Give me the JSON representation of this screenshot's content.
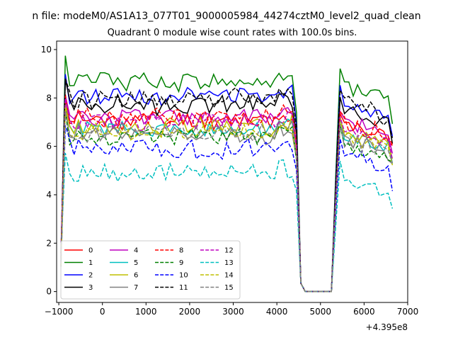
{
  "chart_data": {
    "type": "line",
    "suptitle": "n file: modeM0/AS1A13_077T01_9000005984_44274cztM0_level2_quad_clean",
    "title": "Quadrant 0 module wise count rates with 100.0s bins.",
    "xlabel": "",
    "ylabel": "",
    "offset_label": "+4.395e8",
    "xlim": [
      -1050,
      7000
    ],
    "ylim": [
      -0.45,
      10.35
    ],
    "x_ticks": [
      -1000,
      0,
      1000,
      2000,
      3000,
      4000,
      5000,
      6000,
      7000
    ],
    "y_ticks": [
      0,
      2,
      4,
      6,
      8,
      10
    ],
    "grid": false,
    "legend_position": "lower-left",
    "profile": {
      "description_free": true,
      "x_start": -950,
      "x_step": 100,
      "n_points": 77,
      "rise_end": -850,
      "drop_start": 4450,
      "drop_zero_start": 4650,
      "zero_end": 5250,
      "recover_top": 5450,
      "x_end": 6650
    },
    "series": [
      {
        "name": "0",
        "color": "#ff0000",
        "dash": "solid",
        "level": 7.1,
        "amp": 0.35,
        "seed": 11
      },
      {
        "name": "1",
        "color": "#008000",
        "dash": "solid",
        "level": 8.7,
        "amp": 0.35,
        "seed": 12
      },
      {
        "name": "2",
        "color": "#0000ff",
        "dash": "solid",
        "level": 8.1,
        "amp": 0.35,
        "seed": 13
      },
      {
        "name": "3",
        "color": "#000000",
        "dash": "solid",
        "level": 7.7,
        "amp": 0.35,
        "seed": 14
      },
      {
        "name": "4",
        "color": "#bf00bf",
        "dash": "solid",
        "level": 7.2,
        "amp": 0.35,
        "seed": 15
      },
      {
        "name": "5",
        "color": "#00bfbf",
        "dash": "solid",
        "level": 6.7,
        "amp": 0.3,
        "seed": 16
      },
      {
        "name": "6",
        "color": "#bfbf00",
        "dash": "solid",
        "level": 6.8,
        "amp": 0.35,
        "seed": 17
      },
      {
        "name": "7",
        "color": "#808080",
        "dash": "solid",
        "level": 6.5,
        "amp": 0.35,
        "seed": 18
      },
      {
        "name": "8",
        "color": "#ff0000",
        "dash": "dashed",
        "level": 7.2,
        "amp": 0.35,
        "seed": 19
      },
      {
        "name": "9",
        "color": "#008000",
        "dash": "dashed",
        "level": 6.4,
        "amp": 0.3,
        "seed": 20
      },
      {
        "name": "10",
        "color": "#0000ff",
        "dash": "dashed",
        "level": 5.9,
        "amp": 0.35,
        "seed": 21
      },
      {
        "name": "11",
        "color": "#000000",
        "dash": "dashed",
        "level": 8.0,
        "amp": 0.35,
        "seed": 22
      },
      {
        "name": "12",
        "color": "#bf00bf",
        "dash": "dashed",
        "level": 7.0,
        "amp": 0.35,
        "seed": 23
      },
      {
        "name": "13",
        "color": "#00bfbf",
        "dash": "dashed",
        "level": 4.9,
        "amp": 0.35,
        "seed": 24
      },
      {
        "name": "14",
        "color": "#bfbf00",
        "dash": "dashed",
        "level": 6.6,
        "amp": 0.3,
        "seed": 25
      },
      {
        "name": "15",
        "color": "#808080",
        "dash": "dashed",
        "level": 6.6,
        "amp": 0.35,
        "seed": 26
      }
    ]
  }
}
